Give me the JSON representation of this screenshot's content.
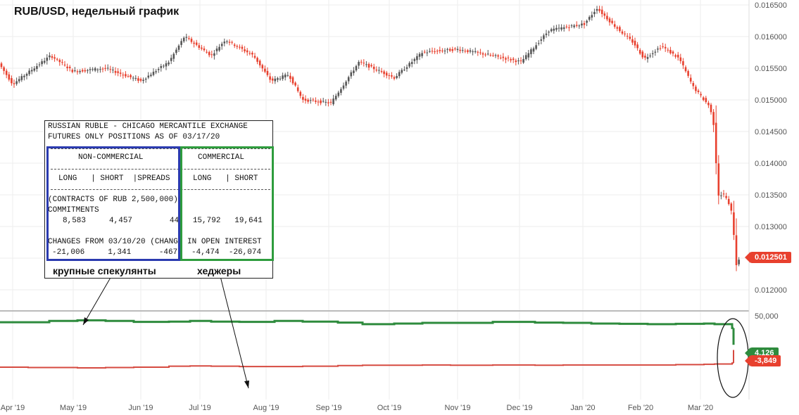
{
  "title": "RUB/USD, недельный график",
  "colors": {
    "up": "#555555",
    "down": "#e8402e",
    "commercial": "#2e8b3d",
    "noncommercial": "#d64a40",
    "price_badge": "#e8402e",
    "blue_frame": "#2b3bb0",
    "green_frame": "#2e9c3d"
  },
  "price_axis": {
    "ticks": [
      "0.016500",
      "0.016000",
      "0.015500",
      "0.015000",
      "0.014500",
      "0.014000",
      "0.013500",
      "0.013000",
      "0.012500",
      "0.012000"
    ],
    "current_value": "0.012501"
  },
  "lower_axis": {
    "ticks": [
      "50,000"
    ],
    "commercial_badge": "4,126",
    "noncommercial_badge": "-3,849"
  },
  "x_axis": {
    "labels": [
      "Apr '19",
      "May '19",
      "Jun '19",
      "Jul '19",
      "Aug '19",
      "Sep '19",
      "Oct '19",
      "Nov '19",
      "Dec '19",
      "Jan '20",
      "Feb '20",
      "Mar '20"
    ]
  },
  "cot_report": {
    "line1": "RUSSIAN RUBLE - CHICAGO MERCANTILE EXCHANGE",
    "line2": "FUTURES ONLY POSITIONS AS OF 03/17/20",
    "noncommercial_header": "NON-COMMERCIAL",
    "commercial_header": "COMMERCIAL",
    "col_header_noncomm": "LONG   | SHORT  |SPREADS",
    "col_header_comm": "LONG   | SHORT",
    "contracts_line": "(CONTRACTS OF RUB 2,500,000)",
    "commitments_label": "COMMITMENTS",
    "commitments_values": "8,583     4,457        44   15,792   19,641",
    "changes_label": "CHANGES FROM 03/10/20 (CHANGE IN OPEN INTEREST",
    "changes_values": "-21,006     1,341      -467   -4,474  -26,074"
  },
  "captions": {
    "speculators": "крупные спекулянты",
    "hedgers": "хеджеры"
  },
  "chart_data": [
    {
      "type": "line",
      "title": "RUB/USD, недельный график",
      "x": [
        "Mar '19",
        "Apr '19",
        "May '19",
        "Jun '19",
        "Jul '19",
        "Aug '19",
        "Sep '19",
        "Oct '19",
        "Nov '19",
        "Dec '19",
        "Jan '20",
        "Feb '20",
        "Mar '20 (early)",
        "Mar '20 (mid)",
        "Mar '20 (late)"
      ],
      "series": [
        {
          "values": [
            0.01555,
            0.0153,
            0.01565,
            0.0153,
            0.01595,
            0.0154,
            0.01495,
            0.01555,
            0.01575,
            0.01565,
            0.0163,
            0.0158,
            0.015,
            0.0134,
            0.0125
          ]
        }
      ],
      "ylim": [
        0.0119,
        0.0166
      ]
    },
    {
      "type": "line",
      "x": [
        "Mar '19",
        "Apr '19",
        "May '19",
        "Jun '19",
        "Jul '19",
        "Aug '19",
        "Sep '19",
        "Oct '19",
        "Nov '19",
        "Dec '19",
        "Jan '20",
        "Feb '20",
        "Mar '20"
      ],
      "series": [
        {
          "values": [
            40000,
            42000,
            43000,
            41000,
            40000,
            39000,
            37000,
            36000,
            38000,
            39000,
            38000,
            37000,
            4126
          ]
        },
        {
          "values": [
            -30000,
            -31000,
            -31000,
            -29000,
            -29000,
            -28000,
            -27000,
            -26000,
            -26000,
            -26000,
            -25000,
            -25000,
            -3849
          ]
        }
      ],
      "ylim": [
        -35000,
        50000
      ]
    }
  ]
}
